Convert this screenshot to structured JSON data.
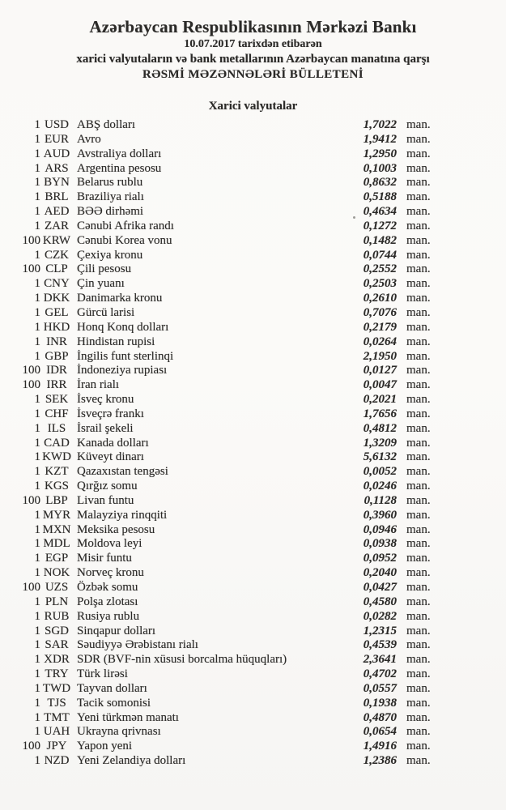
{
  "document": {
    "title": "Azərbaycan Respublikasının Mərkəzi Bankı",
    "date_line": "10.07.2017 tarixdən etibarən",
    "subtitle": "xarici valyutaların və bank metallarının Azərbaycan manatına qarşı",
    "bulletin_title": "RƏSMİ MƏZƏNNƏLƏRİ BÜLLETENİ",
    "section_title": "Xarici valyutalar",
    "unit_label": "man.",
    "paper_color": "#faf9f7",
    "ink_color": "#2b2a28"
  },
  "rates": [
    {
      "qty": "1",
      "code": "USD",
      "name": "ABŞ dolları",
      "rate": "1,7022"
    },
    {
      "qty": "1",
      "code": "EUR",
      "name": "Avro",
      "rate": "1,9412"
    },
    {
      "qty": "1",
      "code": "AUD",
      "name": "Avstraliya dolları",
      "rate": "1,2950"
    },
    {
      "qty": "1",
      "code": "ARS",
      "name": "Argentina pesosu",
      "rate": "0,1003"
    },
    {
      "qty": "1",
      "code": "BYN",
      "name": "Belarus rublu",
      "rate": "0,8632"
    },
    {
      "qty": "1",
      "code": "BRL",
      "name": "Braziliya rialı",
      "rate": "0,5188"
    },
    {
      "qty": "1",
      "code": "AED",
      "name": "BƏƏ dirhəmi",
      "rate": "0,4634"
    },
    {
      "qty": "1",
      "code": "ZAR",
      "name": "Cənubi Afrika randı",
      "rate": "0,1272"
    },
    {
      "qty": "100",
      "code": "KRW",
      "name": "Cənubi Korea vonu",
      "rate": "0,1482"
    },
    {
      "qty": "1",
      "code": "CZK",
      "name": "Çexiya kronu",
      "rate": "0,0744"
    },
    {
      "qty": "100",
      "code": "CLP",
      "name": "Çili pesosu",
      "rate": "0,2552"
    },
    {
      "qty": "1",
      "code": "CNY",
      "name": "Çin yuanı",
      "rate": "0,2503"
    },
    {
      "qty": "1",
      "code": "DKK",
      "name": "Danimarka kronu",
      "rate": "0,2610"
    },
    {
      "qty": "1",
      "code": "GEL",
      "name": "Gürcü larisi",
      "rate": "0,7076"
    },
    {
      "qty": "1",
      "code": "HKD",
      "name": "Honq Konq dolları",
      "rate": "0,2179"
    },
    {
      "qty": "1",
      "code": "INR",
      "name": "Hindistan rupisi",
      "rate": "0,0264"
    },
    {
      "qty": "1",
      "code": "GBP",
      "name": "İngilis funt sterlinqi",
      "rate": "2,1950"
    },
    {
      "qty": "100",
      "code": "IDR",
      "name": "İndoneziya rupiası",
      "rate": "0,0127"
    },
    {
      "qty": "100",
      "code": "IRR",
      "name": "İran rialı",
      "rate": "0,0047"
    },
    {
      "qty": "1",
      "code": "SEK",
      "name": "İsveç kronu",
      "rate": "0,2021"
    },
    {
      "qty": "1",
      "code": "CHF",
      "name": "İsveçrə frankı",
      "rate": "1,7656"
    },
    {
      "qty": "1",
      "code": "ILS",
      "name": "İsrail şekeli",
      "rate": "0,4812"
    },
    {
      "qty": "1",
      "code": "CAD",
      "name": "Kanada dolları",
      "rate": "1,3209"
    },
    {
      "qty": "1",
      "code": "KWD",
      "name": "Küveyt dinarı",
      "rate": "5,6132"
    },
    {
      "qty": "1",
      "code": "KZT",
      "name": "Qazaxıstan tengəsi",
      "rate": "0,0052"
    },
    {
      "qty": "1",
      "code": "KGS",
      "name": "Qırğız somu",
      "rate": "0,0246"
    },
    {
      "qty": "100",
      "code": "LBP",
      "name": "Livan funtu",
      "rate": "0,1128"
    },
    {
      "qty": "1",
      "code": "MYR",
      "name": "Malayziya rinqqiti",
      "rate": "0,3960"
    },
    {
      "qty": "1",
      "code": "MXN",
      "name": "Meksika pesosu",
      "rate": "0,0946"
    },
    {
      "qty": "1",
      "code": "MDL",
      "name": "Moldova leyi",
      "rate": "0,0938"
    },
    {
      "qty": "1",
      "code": "EGP",
      "name": "Misir funtu",
      "rate": "0,0952"
    },
    {
      "qty": "1",
      "code": "NOK",
      "name": "Norveç kronu",
      "rate": "0,2040"
    },
    {
      "qty": "100",
      "code": "UZS",
      "name": "Özbək somu",
      "rate": "0,0427"
    },
    {
      "qty": "1",
      "code": "PLN",
      "name": "Polşa zlotası",
      "rate": "0,4580"
    },
    {
      "qty": "1",
      "code": "RUB",
      "name": "Rusiya rublu",
      "rate": "0,0282"
    },
    {
      "qty": "1",
      "code": "SGD",
      "name": "Sinqapur dolları",
      "rate": "1,2315"
    },
    {
      "qty": "1",
      "code": "SAR",
      "name": "Səudiyyə Ərəbistanı rialı",
      "rate": "0,4539"
    },
    {
      "qty": "1",
      "code": "XDR",
      "name": "SDR (BVF-nin xüsusi borcalma hüquqları)",
      "rate": "2,3641"
    },
    {
      "qty": "1",
      "code": "TRY",
      "name": "Türk lirəsi",
      "rate": "0,4702"
    },
    {
      "qty": "1",
      "code": "TWD",
      "name": "Tayvan dolları",
      "rate": "0,0557"
    },
    {
      "qty": "1",
      "code": "TJS",
      "name": "Tacik somonisi",
      "rate": "0,1938"
    },
    {
      "qty": "1",
      "code": "TMT",
      "name": "Yeni türkmən manatı",
      "rate": "0,4870"
    },
    {
      "qty": "1",
      "code": "UAH",
      "name": "Ukrayna qrivnası",
      "rate": "0,0654"
    },
    {
      "qty": "100",
      "code": "JPY",
      "name": "Yapon yeni",
      "rate": "1,4916"
    },
    {
      "qty": "1",
      "code": "NZD",
      "name": "Yeni Zelandiya dolları",
      "rate": "1,2386"
    }
  ]
}
